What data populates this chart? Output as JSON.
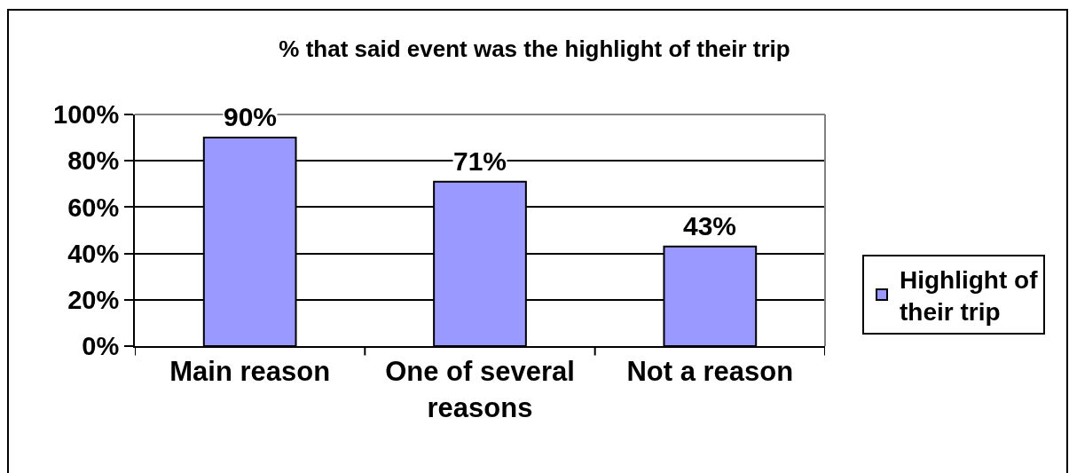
{
  "chart_data": {
    "type": "bar",
    "title": "% that said event was the highlight of their trip",
    "categories": [
      "Main reason",
      "One of several reasons",
      "Not a reason"
    ],
    "series": [
      {
        "name": "Highlight of their trip",
        "color": "#9999ff",
        "values": [
          90,
          71,
          43
        ],
        "value_labels": [
          "90%",
          "71%",
          "43%"
        ]
      }
    ],
    "ylim": [
      0,
      100
    ],
    "yticks": [
      {
        "value": 0,
        "label": "0%"
      },
      {
        "value": 20,
        "label": "20%"
      },
      {
        "value": 40,
        "label": "40%"
      },
      {
        "value": 60,
        "label": "60%"
      },
      {
        "value": 80,
        "label": "80%"
      },
      {
        "value": 100,
        "label": "100%"
      }
    ],
    "grid": "y",
    "legend": "right"
  }
}
